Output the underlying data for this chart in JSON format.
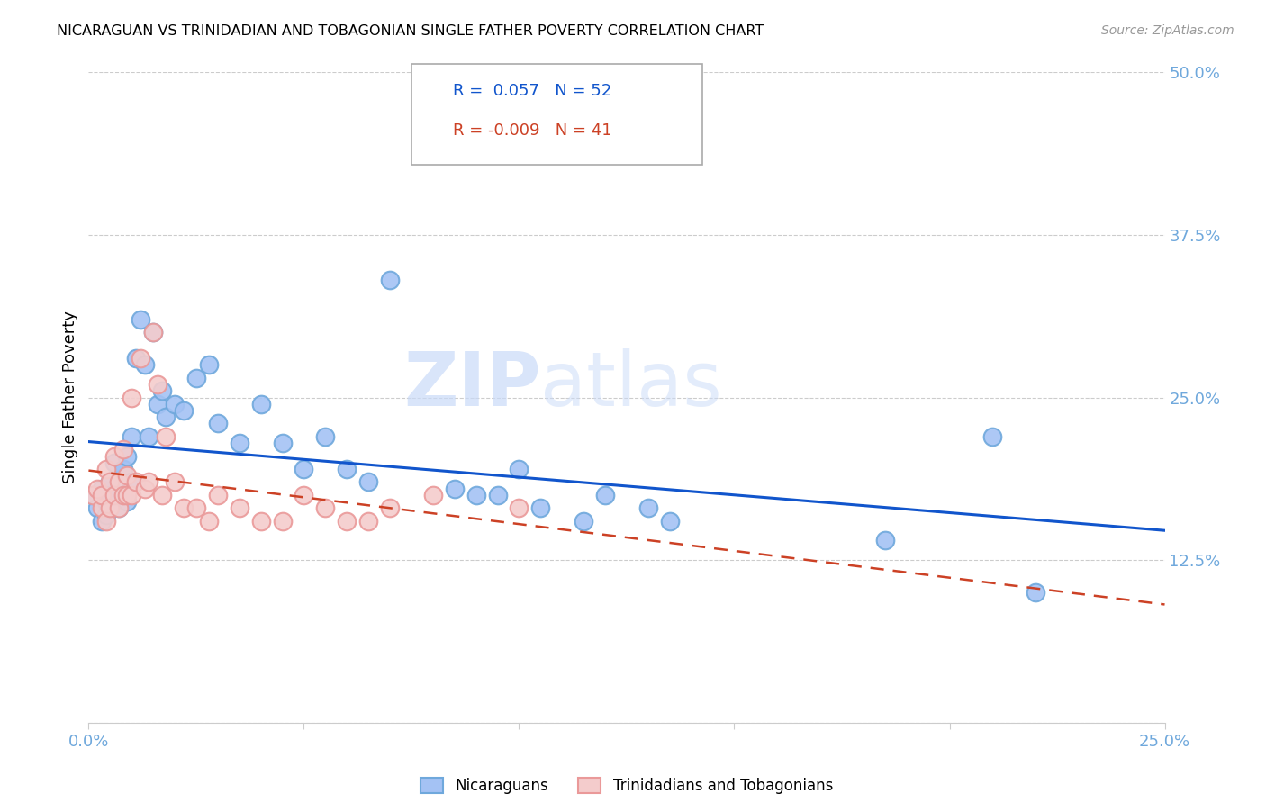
{
  "title": "NICARAGUAN VS TRINIDADIAN AND TOBAGONIAN SINGLE FATHER POVERTY CORRELATION CHART",
  "source": "Source: ZipAtlas.com",
  "ylabel": "Single Father Poverty",
  "xlim": [
    0.0,
    0.25
  ],
  "ylim": [
    0.0,
    0.5
  ],
  "xticks": [
    0.0,
    0.05,
    0.1,
    0.15,
    0.2,
    0.25
  ],
  "yticks": [
    0.0,
    0.125,
    0.25,
    0.375,
    0.5
  ],
  "ytick_labels": [
    "",
    "12.5%",
    "25.0%",
    "37.5%",
    "50.0%"
  ],
  "xtick_labels": [
    "0.0%",
    "",
    "",
    "",
    "",
    "25.0%"
  ],
  "blue_R": 0.057,
  "blue_N": 52,
  "pink_R": -0.009,
  "pink_N": 41,
  "legend_label_blue": "Nicaraguans",
  "legend_label_pink": "Trinidadians and Tobagonians",
  "blue_color_face": "#a4c2f4",
  "blue_color_edge": "#6fa8dc",
  "pink_color_face": "#f4cccc",
  "pink_color_edge": "#ea9999",
  "trend_blue_color": "#1155cc",
  "trend_pink_color": "#cc4125",
  "watermark_color": "#c9daf8",
  "background_color": "#ffffff",
  "grid_color": "#cccccc",
  "axis_tick_color": "#6fa8dc",
  "blue_x": [
    0.001,
    0.002,
    0.003,
    0.003,
    0.004,
    0.004,
    0.005,
    0.005,
    0.005,
    0.006,
    0.006,
    0.007,
    0.007,
    0.008,
    0.008,
    0.009,
    0.009,
    0.01,
    0.01,
    0.011,
    0.012,
    0.013,
    0.014,
    0.015,
    0.016,
    0.017,
    0.018,
    0.02,
    0.022,
    0.025,
    0.028,
    0.03,
    0.035,
    0.04,
    0.045,
    0.05,
    0.055,
    0.06,
    0.065,
    0.07,
    0.085,
    0.09,
    0.095,
    0.1,
    0.105,
    0.115,
    0.12,
    0.13,
    0.135,
    0.185,
    0.21,
    0.22
  ],
  "blue_y": [
    0.175,
    0.165,
    0.18,
    0.155,
    0.17,
    0.16,
    0.185,
    0.175,
    0.165,
    0.2,
    0.175,
    0.185,
    0.165,
    0.195,
    0.175,
    0.205,
    0.17,
    0.22,
    0.185,
    0.28,
    0.31,
    0.275,
    0.22,
    0.3,
    0.245,
    0.255,
    0.235,
    0.245,
    0.24,
    0.265,
    0.275,
    0.23,
    0.215,
    0.245,
    0.215,
    0.195,
    0.22,
    0.195,
    0.185,
    0.34,
    0.18,
    0.175,
    0.175,
    0.195,
    0.165,
    0.155,
    0.175,
    0.165,
    0.155,
    0.14,
    0.22,
    0.1
  ],
  "pink_x": [
    0.001,
    0.002,
    0.003,
    0.003,
    0.004,
    0.004,
    0.005,
    0.005,
    0.006,
    0.006,
    0.007,
    0.007,
    0.008,
    0.008,
    0.009,
    0.009,
    0.01,
    0.01,
    0.011,
    0.012,
    0.013,
    0.014,
    0.015,
    0.016,
    0.017,
    0.018,
    0.02,
    0.022,
    0.025,
    0.028,
    0.03,
    0.035,
    0.04,
    0.045,
    0.05,
    0.055,
    0.06,
    0.065,
    0.07,
    0.08,
    0.1
  ],
  "pink_y": [
    0.175,
    0.18,
    0.165,
    0.175,
    0.195,
    0.155,
    0.185,
    0.165,
    0.205,
    0.175,
    0.185,
    0.165,
    0.21,
    0.175,
    0.19,
    0.175,
    0.25,
    0.175,
    0.185,
    0.28,
    0.18,
    0.185,
    0.3,
    0.26,
    0.175,
    0.22,
    0.185,
    0.165,
    0.165,
    0.155,
    0.175,
    0.165,
    0.155,
    0.155,
    0.175,
    0.165,
    0.155,
    0.155,
    0.165,
    0.175,
    0.165
  ]
}
